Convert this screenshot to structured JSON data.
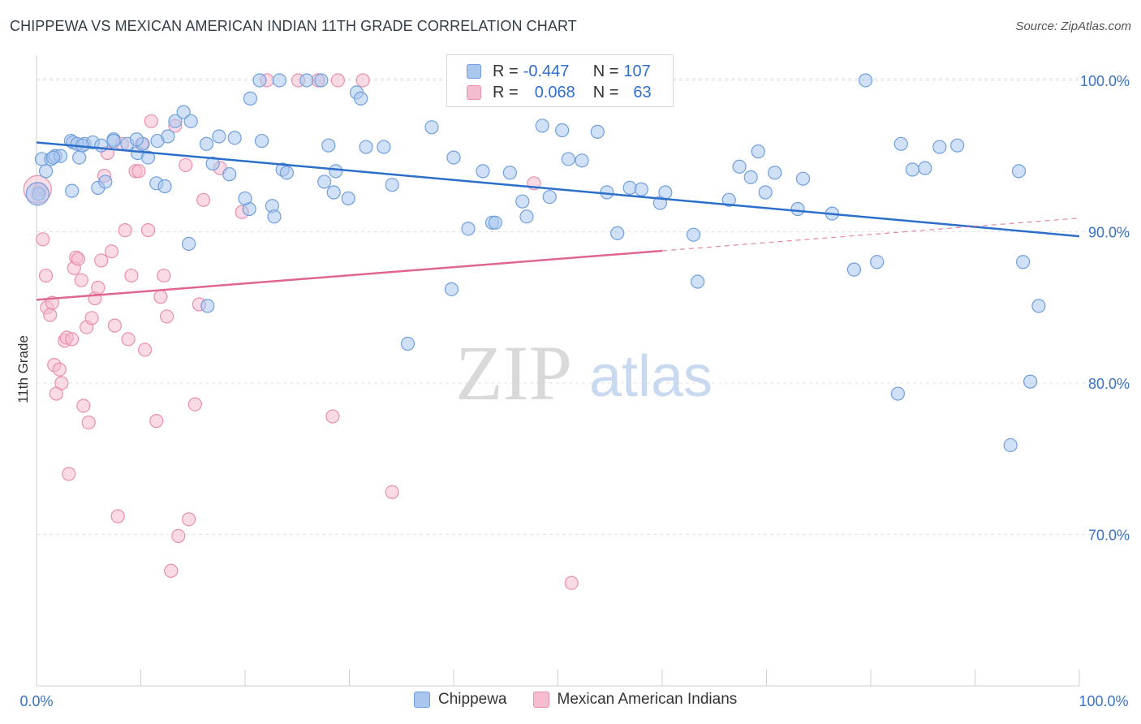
{
  "title": "CHIPPEWA VS MEXICAN AMERICAN INDIAN 11TH GRADE CORRELATION CHART",
  "source": "Source: ZipAtlas.com",
  "watermark": {
    "zip": "ZIP",
    "atlas": "atlas"
  },
  "legend": {
    "rows": [
      {
        "r_label": "R =",
        "r_value": "-0.447",
        "n_label": "N =",
        "n_value": "107"
      },
      {
        "r_label": "R =",
        "r_value": "0.068",
        "n_label": "N =",
        "n_value": "63"
      }
    ]
  },
  "colors": {
    "blue_fill": "#a9c6ee",
    "blue_stroke": "#6f9fdc",
    "blue_line": "#2b6fcb",
    "pink_fill": "#f6bcd0",
    "pink_stroke": "#e98fb0",
    "pink_line": "#e0668f",
    "tick_text": "#3b74c4",
    "grid": "#e2e2e2"
  },
  "chart_data": {
    "type": "scatter",
    "title": "CHIPPEWA VS MEXICAN AMERICAN INDIAN 11TH GRADE CORRELATION CHART",
    "xlabel": "",
    "ylabel": "11th Grade",
    "xlim": [
      0,
      100
    ],
    "ylim": [
      60,
      101.5
    ],
    "x_tick_labels": [
      "0.0%",
      "100.0%"
    ],
    "y_ticks": [
      70,
      80,
      90,
      100
    ],
    "y_tick_labels": [
      "70.0%",
      "80.0%",
      "90.0%",
      "100.0%"
    ],
    "grid": true,
    "legend_position": "bottom",
    "series": [
      {
        "name": "Chippewa",
        "color": "#6f9fdc",
        "trend": {
          "x": [
            0,
            100
          ],
          "y": [
            95.9,
            89.7
          ],
          "dashed_from": null
        },
        "points": [
          [
            0.5,
            94.8
          ],
          [
            1.4,
            94.8
          ],
          [
            3.3,
            96.0
          ],
          [
            4.6,
            95.8
          ],
          [
            5.4,
            95.9
          ],
          [
            7.4,
            96.1
          ],
          [
            0.9,
            94.0
          ],
          [
            1.8,
            95.0
          ],
          [
            2.3,
            95.0
          ],
          [
            3.5,
            95.9
          ],
          [
            3.9,
            95.8
          ],
          [
            4.4,
            95.7
          ],
          [
            8.7,
            95.8
          ],
          [
            9.7,
            95.2
          ],
          [
            10.2,
            95.8
          ],
          [
            10.7,
            94.9
          ],
          [
            11.6,
            96.0
          ],
          [
            12.6,
            96.3
          ],
          [
            13.3,
            97.3
          ],
          [
            14.1,
            97.9
          ],
          [
            14.8,
            97.3
          ],
          [
            16.9,
            94.5
          ],
          [
            16.3,
            95.8
          ],
          [
            17.5,
            96.3
          ],
          [
            18.5,
            93.8
          ],
          [
            19.0,
            96.2
          ],
          [
            20.4,
            91.5
          ],
          [
            20.5,
            98.8
          ],
          [
            21.4,
            100
          ],
          [
            22.6,
            91.7
          ],
          [
            22.8,
            91.0
          ],
          [
            23.6,
            94.1
          ],
          [
            23.3,
            100
          ],
          [
            24.0,
            93.9
          ],
          [
            25.9,
            100
          ],
          [
            27.3,
            100
          ],
          [
            28.0,
            95.7
          ],
          [
            28.7,
            94.0
          ],
          [
            28.5,
            92.6
          ],
          [
            29.9,
            92.2
          ],
          [
            30.7,
            99.2
          ],
          [
            31.1,
            98.8
          ],
          [
            31.6,
            95.6
          ],
          [
            33.3,
            95.6
          ],
          [
            34.1,
            93.1
          ],
          [
            37.9,
            96.9
          ],
          [
            39.8,
            86.2
          ],
          [
            40.0,
            94.9
          ],
          [
            41.4,
            90.2
          ],
          [
            42.8,
            94.0
          ],
          [
            43.7,
            90.6
          ],
          [
            44.0,
            90.6
          ],
          [
            45.4,
            93.9
          ],
          [
            46.6,
            92.0
          ],
          [
            47.0,
            91.0
          ],
          [
            48.5,
            97.0
          ],
          [
            49.2,
            92.3
          ],
          [
            50.4,
            96.7
          ],
          [
            51.0,
            94.8
          ],
          [
            52.3,
            94.7
          ],
          [
            53.8,
            96.6
          ],
          [
            54.7,
            92.6
          ],
          [
            55.7,
            89.9
          ],
          [
            56.9,
            92.9
          ],
          [
            58.0,
            92.8
          ],
          [
            59.8,
            91.9
          ],
          [
            60.3,
            92.6
          ],
          [
            63.0,
            89.8
          ],
          [
            63.4,
            86.7
          ],
          [
            66.4,
            92.1
          ],
          [
            67.4,
            94.3
          ],
          [
            68.5,
            93.6
          ],
          [
            69.2,
            95.3
          ],
          [
            69.9,
            92.6
          ],
          [
            70.8,
            93.9
          ],
          [
            73.0,
            91.5
          ],
          [
            73.5,
            93.5
          ],
          [
            76.3,
            91.2
          ],
          [
            78.4,
            87.5
          ],
          [
            79.5,
            100
          ],
          [
            80.6,
            88.0
          ],
          [
            82.9,
            95.8
          ],
          [
            82.6,
            79.3
          ],
          [
            84.0,
            94.1
          ],
          [
            85.2,
            94.2
          ],
          [
            86.6,
            95.6
          ],
          [
            88.3,
            95.7
          ],
          [
            94.2,
            94.0
          ],
          [
            94.6,
            88.0
          ],
          [
            96.1,
            85.1
          ],
          [
            95.3,
            80.1
          ],
          [
            93.4,
            75.9
          ],
          [
            1.6,
            94.9
          ],
          [
            6.2,
            95.7
          ],
          [
            7.4,
            96.0
          ],
          [
            9.6,
            96.1
          ],
          [
            11.5,
            93.2
          ],
          [
            12.3,
            93.0
          ],
          [
            5.9,
            92.9
          ],
          [
            6.6,
            93.3
          ],
          [
            3.4,
            92.7
          ],
          [
            4.1,
            94.9
          ],
          [
            14.6,
            89.2
          ],
          [
            16.4,
            85.1
          ],
          [
            27.6,
            93.3
          ],
          [
            35.6,
            82.6
          ],
          [
            20.0,
            92.2
          ],
          [
            21.6,
            96.0
          ],
          [
            0.2,
            92.5
          ]
        ]
      },
      {
        "name": "Mexican American Indians",
        "color": "#e98fb0",
        "trend": {
          "x": [
            0,
            100
          ],
          "y": [
            85.5,
            90.9
          ],
          "dashed_from": 60
        },
        "points": [
          [
            0.3,
            92.8
          ],
          [
            0.6,
            89.5
          ],
          [
            0.9,
            87.1
          ],
          [
            1.0,
            85.0
          ],
          [
            1.3,
            84.5
          ],
          [
            1.5,
            85.3
          ],
          [
            1.7,
            81.2
          ],
          [
            1.9,
            79.3
          ],
          [
            2.2,
            80.9
          ],
          [
            2.4,
            80.0
          ],
          [
            2.7,
            82.8
          ],
          [
            2.9,
            83.0
          ],
          [
            3.1,
            74.0
          ],
          [
            3.4,
            82.9
          ],
          [
            3.6,
            87.6
          ],
          [
            3.8,
            88.3
          ],
          [
            4.0,
            88.2
          ],
          [
            4.3,
            86.8
          ],
          [
            4.5,
            78.5
          ],
          [
            4.8,
            83.7
          ],
          [
            5.0,
            77.4
          ],
          [
            5.3,
            84.3
          ],
          [
            5.6,
            85.6
          ],
          [
            5.9,
            86.3
          ],
          [
            6.2,
            88.1
          ],
          [
            6.5,
            93.7
          ],
          [
            6.8,
            95.2
          ],
          [
            7.2,
            88.7
          ],
          [
            7.5,
            83.8
          ],
          [
            7.8,
            71.2
          ],
          [
            8.2,
            95.8
          ],
          [
            8.5,
            90.1
          ],
          [
            8.8,
            82.9
          ],
          [
            9.1,
            87.1
          ],
          [
            9.5,
            94.0
          ],
          [
            9.8,
            94.0
          ],
          [
            10.1,
            95.8
          ],
          [
            10.4,
            82.2
          ],
          [
            10.7,
            90.1
          ],
          [
            11.0,
            97.3
          ],
          [
            11.5,
            77.5
          ],
          [
            11.9,
            85.7
          ],
          [
            12.2,
            87.1
          ],
          [
            12.5,
            84.4
          ],
          [
            12.9,
            67.6
          ],
          [
            13.3,
            97.0
          ],
          [
            13.6,
            69.9
          ],
          [
            14.3,
            94.4
          ],
          [
            14.6,
            71.0
          ],
          [
            15.2,
            78.6
          ],
          [
            15.6,
            85.2
          ],
          [
            16.0,
            92.1
          ],
          [
            17.6,
            94.2
          ],
          [
            19.7,
            91.3
          ],
          [
            22.1,
            100
          ],
          [
            25.1,
            100
          ],
          [
            27.0,
            100
          ],
          [
            28.9,
            100
          ],
          [
            28.4,
            77.8
          ],
          [
            31.3,
            100
          ],
          [
            34.1,
            72.8
          ],
          [
            47.7,
            93.2
          ],
          [
            51.3,
            66.8
          ]
        ]
      }
    ]
  }
}
